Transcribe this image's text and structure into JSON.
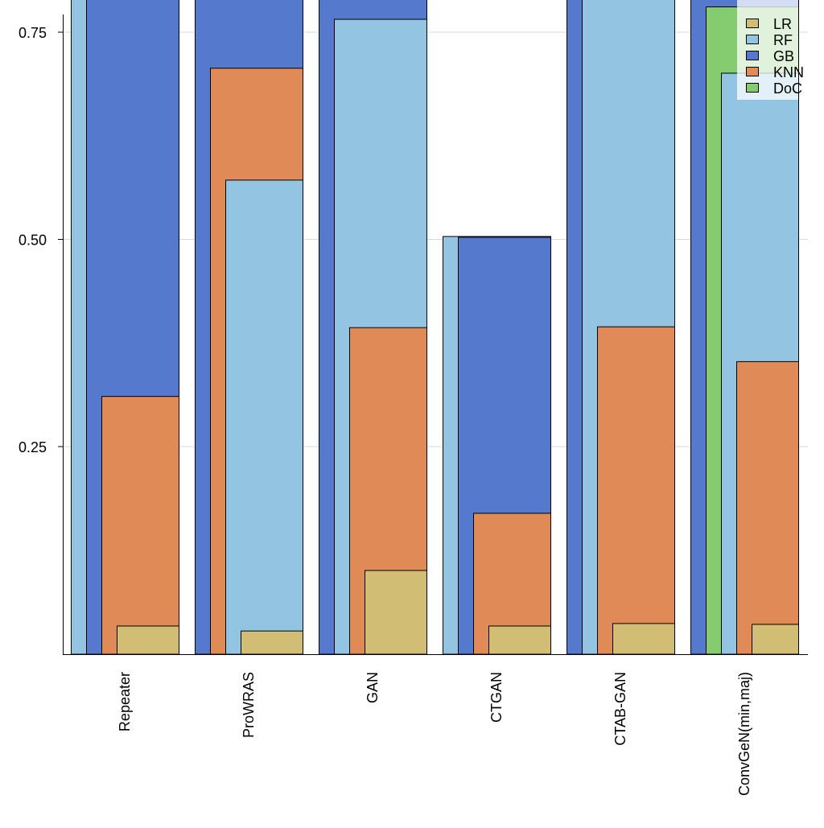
{
  "chart_data": {
    "type": "bar",
    "layout": "overlapping bars per category, drawn in listed order",
    "categories": [
      "Repeater",
      "ProWRAS",
      "GAN",
      "CTGAN",
      "CTAB-GAN",
      "ConvGeN(min,maj)"
    ],
    "yticks": [
      "0.25",
      "0.50",
      "0.75"
    ],
    "ylim": [
      0,
      0.79
    ],
    "grid": true,
    "legend_position": "top-right",
    "legend": [
      "LR",
      "RF",
      "GB",
      "KNN",
      "DoC"
    ],
    "colors": {
      "LR": "#d1bd73",
      "RF": "#93c4e1",
      "GB": "#5479cd",
      "KNN": "#e08a57",
      "DoC": "#85cb6f"
    },
    "groups": [
      {
        "category": "Repeater",
        "bars": [
          {
            "series": "RF",
            "value": null
          },
          {
            "series": "GB",
            "value": null
          },
          {
            "series": "KNN",
            "value": 0.311
          },
          {
            "series": "LR",
            "value": 0.034
          }
        ]
      },
      {
        "category": "ProWRAS",
        "bars": [
          {
            "series": "GB",
            "value": null
          },
          {
            "series": "KNN",
            "value": 0.707
          },
          {
            "series": "RF",
            "value": 0.572
          },
          {
            "series": "LR",
            "value": 0.028
          }
        ]
      },
      {
        "category": "GAN",
        "bars": [
          {
            "series": "GB",
            "value": null
          },
          {
            "series": "RF",
            "value": 0.766
          },
          {
            "series": "KNN",
            "value": 0.394
          },
          {
            "series": "LR",
            "value": 0.101
          }
        ]
      },
      {
        "category": "CTGAN",
        "bars": [
          {
            "series": "RF",
            "value": 0.504
          },
          {
            "series": "GB",
            "value": 0.503
          },
          {
            "series": "KNN",
            "value": 0.17
          },
          {
            "series": "LR",
            "value": 0.034
          }
        ]
      },
      {
        "category": "CTAB-GAN",
        "bars": [
          {
            "series": "GB",
            "value": null
          },
          {
            "series": "RF",
            "value": null
          },
          {
            "series": "KNN",
            "value": 0.395
          },
          {
            "series": "LR",
            "value": 0.037
          }
        ]
      },
      {
        "category": "ConvGeN(min,maj)",
        "bars": [
          {
            "series": "GB",
            "value": null
          },
          {
            "series": "DoC",
            "value": 0.781
          },
          {
            "series": "RF",
            "value": 0.701
          },
          {
            "series": "KNN",
            "value": 0.353
          },
          {
            "series": "LR",
            "value": 0.036
          }
        ]
      }
    ],
    "note_values": "null = bar extends above the visible axis range"
  }
}
